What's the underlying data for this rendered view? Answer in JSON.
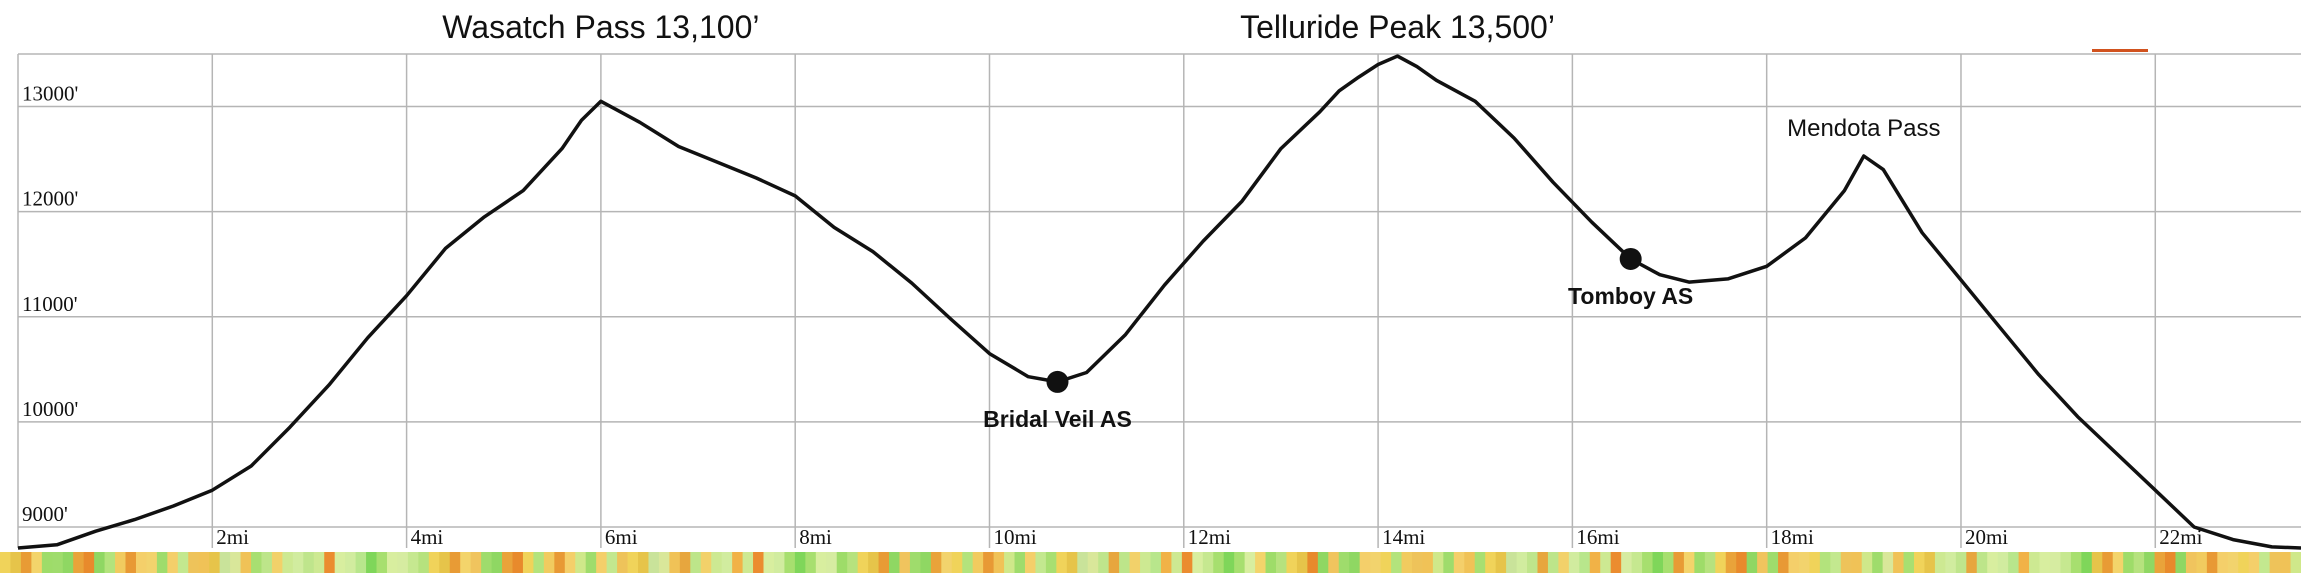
{
  "chart_data": {
    "type": "line",
    "x_unit": "mi",
    "xlim": [
      0,
      23.5
    ],
    "ylim": [
      8800,
      13500
    ],
    "grid": true,
    "x_ticks": [
      {
        "value": 2,
        "label": "2mi"
      },
      {
        "value": 4,
        "label": "4mi"
      },
      {
        "value": 6,
        "label": "6mi"
      },
      {
        "value": 8,
        "label": "8mi"
      },
      {
        "value": 10,
        "label": "10mi"
      },
      {
        "value": 12,
        "label": "12mi"
      },
      {
        "value": 14,
        "label": "14mi"
      },
      {
        "value": 16,
        "label": "16mi"
      },
      {
        "value": 18,
        "label": "18mi"
      },
      {
        "value": 20,
        "label": "20mi"
      },
      {
        "value": 22,
        "label": "22mi"
      }
    ],
    "y_ticks": [
      {
        "value": 13000,
        "label": "13000'"
      },
      {
        "value": 12000,
        "label": "12000'"
      },
      {
        "value": 11000,
        "label": "11000'"
      },
      {
        "value": 10000,
        "label": "10000'"
      },
      {
        "value": 9000,
        "label": "9000'"
      }
    ],
    "series": [
      {
        "color": "#111111",
        "points": [
          [
            0,
            8800
          ],
          [
            0.4,
            8830
          ],
          [
            0.8,
            8960
          ],
          [
            1.2,
            9070
          ],
          [
            1.6,
            9200
          ],
          [
            2,
            9350
          ],
          [
            2.4,
            9580
          ],
          [
            2.8,
            9950
          ],
          [
            3.2,
            10350
          ],
          [
            3.6,
            10800
          ],
          [
            4,
            11200
          ],
          [
            4.4,
            11650
          ],
          [
            4.8,
            11950
          ],
          [
            5.2,
            12200
          ],
          [
            5.6,
            12600
          ],
          [
            5.8,
            12870
          ],
          [
            6,
            13050
          ],
          [
            6.4,
            12850
          ],
          [
            6.8,
            12620
          ],
          [
            7.2,
            12470
          ],
          [
            7.6,
            12320
          ],
          [
            8,
            12150
          ],
          [
            8.4,
            11850
          ],
          [
            8.8,
            11620
          ],
          [
            9.2,
            11320
          ],
          [
            9.6,
            10980
          ],
          [
            10,
            10650
          ],
          [
            10.4,
            10430
          ],
          [
            10.7,
            10380
          ],
          [
            11,
            10470
          ],
          [
            11.4,
            10830
          ],
          [
            11.8,
            11300
          ],
          [
            12.2,
            11720
          ],
          [
            12.6,
            12100
          ],
          [
            13,
            12600
          ],
          [
            13.4,
            12950
          ],
          [
            13.6,
            13150
          ],
          [
            13.8,
            13280
          ],
          [
            14,
            13400
          ],
          [
            14.2,
            13480
          ],
          [
            14.4,
            13380
          ],
          [
            14.6,
            13250
          ],
          [
            15,
            13050
          ],
          [
            15.4,
            12700
          ],
          [
            15.8,
            12280
          ],
          [
            16.2,
            11900
          ],
          [
            16.6,
            11550
          ],
          [
            16.9,
            11400
          ],
          [
            17.2,
            11330
          ],
          [
            17.6,
            11360
          ],
          [
            18,
            11480
          ],
          [
            18.4,
            11750
          ],
          [
            18.8,
            12200
          ],
          [
            19,
            12530
          ],
          [
            19.2,
            12400
          ],
          [
            19.6,
            11800
          ],
          [
            20,
            11350
          ],
          [
            20.4,
            10900
          ],
          [
            20.8,
            10450
          ],
          [
            21.2,
            10050
          ],
          [
            21.6,
            9700
          ],
          [
            22,
            9350
          ],
          [
            22.4,
            9000
          ],
          [
            22.8,
            8880
          ],
          [
            23.2,
            8810
          ],
          [
            23.5,
            8800
          ]
        ]
      }
    ],
    "peak_labels": [
      {
        "text": "Wasatch Pass 13,100’",
        "x": 6
      },
      {
        "text": "Telluride Peak 13,500’",
        "x": 14.2
      }
    ],
    "pass_labels": [
      {
        "text": "Mendota Pass",
        "x": 19,
        "y": 12530
      }
    ],
    "aid_stations": [
      {
        "name": "Bridal Veil AS",
        "x": 10.7,
        "y": 10380
      },
      {
        "name": "Tomboy AS",
        "x": 16.6,
        "y": 11550
      }
    ],
    "gradient_strip": [
      "#f0d35a",
      "#cfe88a",
      "#b8e68c",
      "#e9a33a",
      "#c9e39a",
      "#7fd65a",
      "#f2d36d",
      "#d1ec9f",
      "#e6c44a",
      "#9fdc6c",
      "#f1b247",
      "#e88a2c",
      "#d9e79a",
      "#a7df6f",
      "#f0d35a",
      "#bfe58c",
      "#e89b35",
      "#f4cf6a",
      "#cde992",
      "#8fd763",
      "#f0c257",
      "#d8ee9f",
      "#b3e37c",
      "#e7a63e",
      "#f3d46b",
      "#c3e88f",
      "#eb8c2f",
      "#f0c45e",
      "#a8df71",
      "#d6eca1",
      "#f1cb5f",
      "#bde58a",
      "#9edc69",
      "#eec35a",
      "#d8ee9f",
      "#9fdc6c",
      "#f0d35a",
      "#c6e890",
      "#e89935",
      "#f2d16a",
      "#b6e27e",
      "#f0c257",
      "#d1ec9f",
      "#8fd763",
      "#e6c44a",
      "#a7df6f",
      "#f4cf6a",
      "#cde992"
    ],
    "accent_marker_color": "#d1521e"
  }
}
